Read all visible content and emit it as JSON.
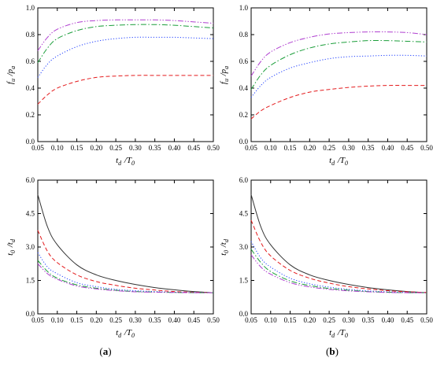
{
  "chart_data": [
    {
      "type": "line",
      "panel": "top-left",
      "xlabel": "t_d / T_0",
      "ylabel": "f_u / p_a",
      "xlim": [
        0.05,
        0.5
      ],
      "ylim": [
        0,
        1.0
      ],
      "xticks": [
        0.05,
        0.1,
        0.15,
        0.2,
        0.25,
        0.3,
        0.35,
        0.4,
        0.45,
        0.5
      ],
      "xtick_labels": [
        "0.05",
        "0.10",
        "0.15",
        "0.20",
        "0.25",
        "0.30",
        "0.35",
        "0.40",
        "0.45",
        "0.50"
      ],
      "yticks": [
        0,
        0.2,
        0.4,
        0.6,
        0.8,
        1.0
      ],
      "ytick_labels": [
        "0.0",
        "0.2",
        "0.4",
        "0.6",
        "0.8",
        "1.0"
      ],
      "grid": false,
      "x": [
        0.05,
        0.075,
        0.1,
        0.15,
        0.2,
        0.25,
        0.3,
        0.35,
        0.4,
        0.45,
        0.5
      ],
      "series": [
        {
          "color": "#e41a1c",
          "dash": "dashed",
          "values": [
            0.28,
            0.35,
            0.4,
            0.45,
            0.48,
            0.49,
            0.495,
            0.495,
            0.495,
            0.495,
            0.495
          ]
        },
        {
          "color": "#1f3fff",
          "dash": "dotted",
          "values": [
            0.48,
            0.58,
            0.64,
            0.71,
            0.75,
            0.77,
            0.78,
            0.78,
            0.78,
            0.775,
            0.77
          ]
        },
        {
          "color": "#1b9e3a",
          "dash": "dashdot",
          "values": [
            0.59,
            0.7,
            0.77,
            0.83,
            0.86,
            0.87,
            0.875,
            0.875,
            0.87,
            0.86,
            0.85
          ]
        },
        {
          "color": "#b040d0",
          "dash": "dashdotdot",
          "values": [
            0.68,
            0.78,
            0.84,
            0.89,
            0.905,
            0.91,
            0.91,
            0.91,
            0.905,
            0.895,
            0.885
          ]
        }
      ]
    },
    {
      "type": "line",
      "panel": "top-right",
      "xlabel": "t_d / T_0",
      "ylabel": "f_u / p_a",
      "xlim": [
        0.05,
        0.5
      ],
      "ylim": [
        0,
        1.0
      ],
      "xticks": [
        0.05,
        0.1,
        0.15,
        0.2,
        0.25,
        0.3,
        0.35,
        0.4,
        0.45,
        0.5
      ],
      "xtick_labels": [
        "0.05",
        "0.10",
        "0.15",
        "0.20",
        "0.25",
        "0.30",
        "0.35",
        "0.40",
        "0.45",
        "0.50"
      ],
      "yticks": [
        0,
        0.2,
        0.4,
        0.6,
        0.8,
        1.0
      ],
      "ytick_labels": [
        "0.0",
        "0.2",
        "0.4",
        "0.6",
        "0.8",
        "1.0"
      ],
      "grid": false,
      "x": [
        0.05,
        0.075,
        0.1,
        0.15,
        0.2,
        0.25,
        0.3,
        0.35,
        0.4,
        0.45,
        0.5
      ],
      "series": [
        {
          "color": "#e41a1c",
          "dash": "dashed",
          "values": [
            0.17,
            0.23,
            0.27,
            0.33,
            0.37,
            0.39,
            0.405,
            0.415,
            0.42,
            0.42,
            0.42
          ]
        },
        {
          "color": "#1f3fff",
          "dash": "dotted",
          "values": [
            0.33,
            0.42,
            0.48,
            0.55,
            0.59,
            0.62,
            0.635,
            0.64,
            0.645,
            0.645,
            0.64
          ]
        },
        {
          "color": "#1b9e3a",
          "dash": "dashdot",
          "values": [
            0.39,
            0.5,
            0.57,
            0.65,
            0.7,
            0.73,
            0.745,
            0.755,
            0.755,
            0.75,
            0.745
          ]
        },
        {
          "color": "#b040d0",
          "dash": "dashdotdot",
          "values": [
            0.49,
            0.6,
            0.67,
            0.74,
            0.78,
            0.805,
            0.815,
            0.82,
            0.82,
            0.815,
            0.8
          ]
        }
      ]
    },
    {
      "type": "line",
      "panel": "bottom-left",
      "xlabel": "t_d / T_0",
      "ylabel": "t_0 / t_d",
      "xlim": [
        0.05,
        0.5
      ],
      "ylim": [
        0,
        6.0
      ],
      "xticks": [
        0.05,
        0.1,
        0.15,
        0.2,
        0.25,
        0.3,
        0.35,
        0.4,
        0.45,
        0.5
      ],
      "xtick_labels": [
        "0.05",
        "0.10",
        "0.15",
        "0.20",
        "0.25",
        "0.30",
        "0.35",
        "0.40",
        "0.45",
        "0.50"
      ],
      "yticks": [
        0,
        1.5,
        3.0,
        4.5,
        6.0
      ],
      "ytick_labels": [
        "0.0",
        "1.5",
        "3.0",
        "4.5",
        "6.0"
      ],
      "grid": false,
      "x": [
        0.05,
        0.075,
        0.1,
        0.15,
        0.2,
        0.25,
        0.3,
        0.35,
        0.4,
        0.45,
        0.5
      ],
      "series": [
        {
          "color": "#333333",
          "dash": "solid",
          "values": [
            5.35,
            3.9,
            3.1,
            2.2,
            1.75,
            1.5,
            1.32,
            1.18,
            1.08,
            1.0,
            0.95
          ]
        },
        {
          "color": "#e41a1c",
          "dash": "dashed",
          "values": [
            3.75,
            2.8,
            2.3,
            1.75,
            1.45,
            1.28,
            1.15,
            1.07,
            1.0,
            0.97,
            0.95
          ]
        },
        {
          "color": "#1f3fff",
          "dash": "dotted",
          "values": [
            2.75,
            2.1,
            1.8,
            1.4,
            1.22,
            1.1,
            1.04,
            1.0,
            0.97,
            0.96,
            0.95
          ]
        },
        {
          "color": "#1b9e3a",
          "dash": "dashdot",
          "values": [
            2.4,
            1.9,
            1.6,
            1.3,
            1.15,
            1.06,
            1.0,
            0.98,
            0.96,
            0.95,
            0.95
          ]
        },
        {
          "color": "#b040d0",
          "dash": "dashdotdot",
          "values": [
            2.25,
            1.8,
            1.55,
            1.25,
            1.12,
            1.04,
            0.99,
            0.97,
            0.96,
            0.95,
            0.95
          ]
        }
      ]
    },
    {
      "type": "line",
      "panel": "bottom-right",
      "xlabel": "t_d / T_0",
      "ylabel": "t_0 / t_d",
      "xlim": [
        0.05,
        0.5
      ],
      "ylim": [
        0,
        6.0
      ],
      "xticks": [
        0.05,
        0.1,
        0.15,
        0.2,
        0.25,
        0.3,
        0.35,
        0.4,
        0.45,
        0.5
      ],
      "xtick_labels": [
        "0.05",
        "0.10",
        "0.15",
        "0.20",
        "0.25",
        "0.30",
        "0.35",
        "0.40",
        "0.45",
        "0.50"
      ],
      "yticks": [
        0,
        1.5,
        3.0,
        4.5,
        6.0
      ],
      "ytick_labels": [
        "0.0",
        "1.5",
        "3.0",
        "4.5",
        "6.0"
      ],
      "grid": false,
      "x": [
        0.05,
        0.075,
        0.1,
        0.15,
        0.2,
        0.25,
        0.3,
        0.35,
        0.4,
        0.45,
        0.5
      ],
      "series": [
        {
          "color": "#333333",
          "dash": "solid",
          "values": [
            5.35,
            3.9,
            3.1,
            2.2,
            1.75,
            1.5,
            1.32,
            1.18,
            1.08,
            1.0,
            0.95
          ]
        },
        {
          "color": "#e41a1c",
          "dash": "dashed",
          "values": [
            4.2,
            3.2,
            2.6,
            1.95,
            1.6,
            1.38,
            1.22,
            1.12,
            1.04,
            0.99,
            0.96
          ]
        },
        {
          "color": "#1f3fff",
          "dash": "dotted",
          "values": [
            3.25,
            2.5,
            2.1,
            1.6,
            1.35,
            1.2,
            1.1,
            1.03,
            0.99,
            0.96,
            0.95
          ]
        },
        {
          "color": "#1b9e3a",
          "dash": "dashdot",
          "values": [
            2.9,
            2.3,
            1.9,
            1.48,
            1.27,
            1.14,
            1.06,
            1.0,
            0.97,
            0.95,
            0.95
          ]
        },
        {
          "color": "#b040d0",
          "dash": "dashdotdot",
          "values": [
            2.65,
            2.1,
            1.78,
            1.4,
            1.21,
            1.1,
            1.03,
            0.99,
            0.96,
            0.95,
            0.95
          ]
        }
      ]
    }
  ],
  "labels": {
    "panel_a": "a",
    "panel_b": "b"
  }
}
